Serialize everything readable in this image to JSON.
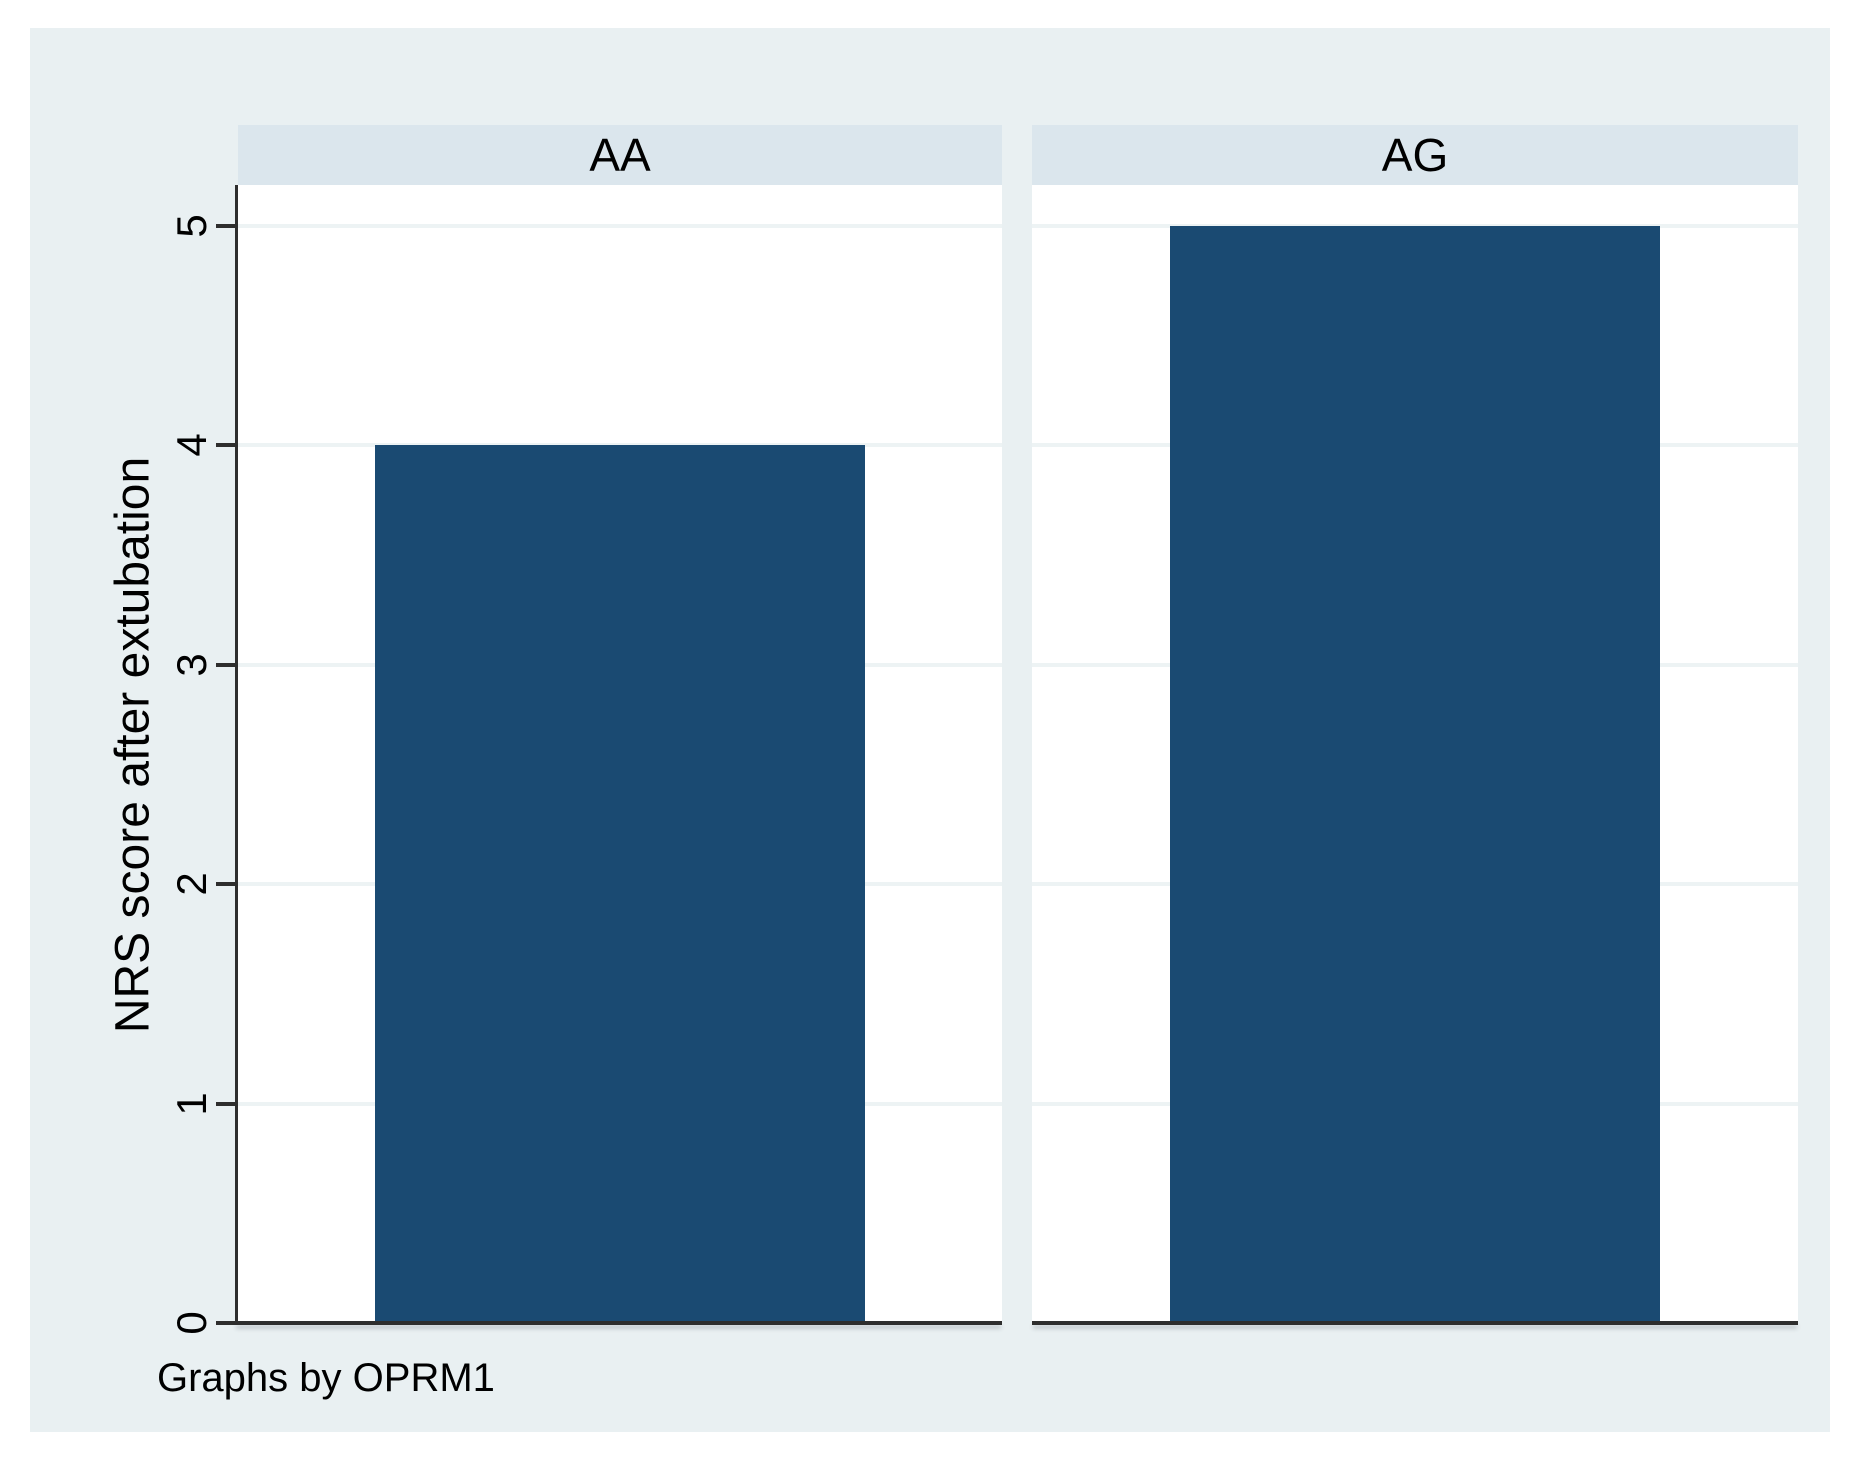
{
  "chart_data": {
    "type": "bar",
    "title": "",
    "ylabel": "NRS score after extubation",
    "xlabel": "",
    "ylim": [
      0,
      5
    ],
    "yticks": [
      "0",
      "1",
      "2",
      "3",
      "4",
      "5"
    ],
    "grid": true,
    "legend": "none",
    "categories": [
      "AA",
      "AG"
    ],
    "values": [
      4,
      5
    ],
    "panels": [
      {
        "label": "AA",
        "value": 4
      },
      {
        "label": "AG",
        "value": 5
      }
    ],
    "note": "Graphs by OPRM1"
  },
  "colors": {
    "bar": "#1a4a72",
    "card_background": "#e9f0f2",
    "panel_header_background": "#dbe6ed",
    "plot_background": "#ffffff",
    "gridline": "#edf3f4",
    "axis": "#2e2e2e",
    "text": "#000000"
  }
}
